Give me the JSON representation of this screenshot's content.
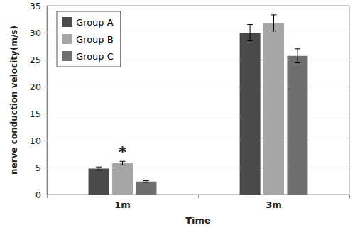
{
  "chart_data": {
    "type": "bar",
    "categories": [
      "1m",
      "3m"
    ],
    "series": [
      {
        "name": "Group A",
        "color": "#4a4a4a",
        "values": [
          4.8,
          30.0
        ],
        "errors": [
          0.3,
          1.5
        ]
      },
      {
        "name": "Group B",
        "color": "#a6a6a6",
        "values": [
          5.8,
          31.8
        ],
        "errors": [
          0.35,
          1.5
        ]
      },
      {
        "name": "Group C",
        "color": "#6f6f6f",
        "values": [
          2.4,
          25.7
        ],
        "errors": [
          0.15,
          1.3
        ]
      }
    ],
    "x_label": "Time",
    "y_label": "nerve conduction velocity(m/s)",
    "ylim": [
      0,
      35
    ],
    "yticks": [
      0,
      5,
      10,
      15,
      20,
      25,
      30,
      35
    ],
    "annotations": [
      {
        "text": "*",
        "category": "1m",
        "series": "Group B"
      }
    ],
    "grid": true,
    "legend": "upper left"
  }
}
